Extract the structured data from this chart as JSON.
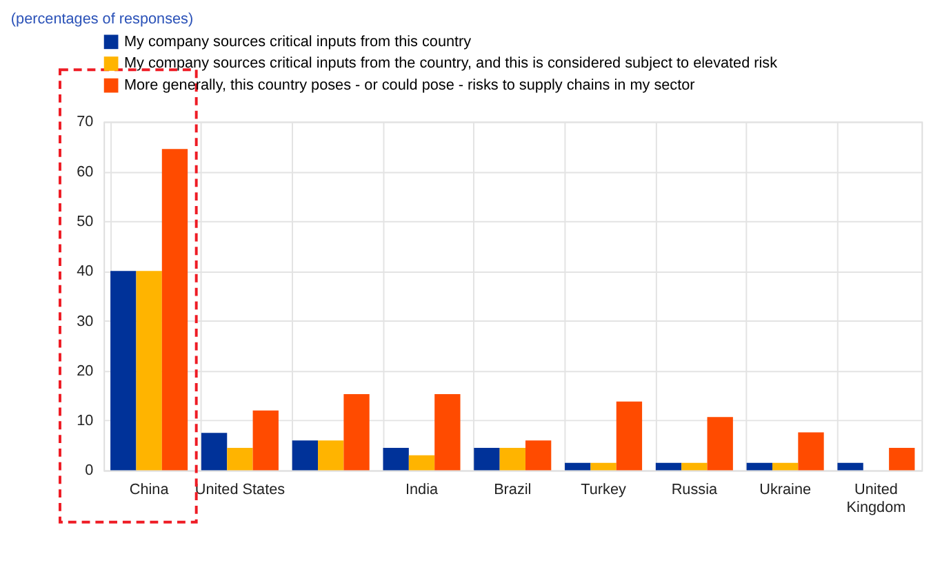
{
  "chart_data": {
    "type": "bar",
    "title": "(percentages of responses)",
    "categories": [
      "China",
      "United States",
      null,
      "India",
      "Brazil",
      "Turkey",
      "Russia",
      "Ukraine",
      "United Kingdom"
    ],
    "series": [
      {
        "name": "My company sources critical inputs from this country",
        "color": "#003299",
        "values": [
          40,
          7.5,
          6,
          4.5,
          4.5,
          1.5,
          1.5,
          1.5,
          1.5
        ]
      },
      {
        "name": "My company sources critical inputs from the country, and this is considered subject to elevated risk",
        "color": "#ffb400",
        "values": [
          40,
          4.5,
          6,
          3,
          4.5,
          1.5,
          1.5,
          1.5,
          0
        ]
      },
      {
        "name": "More generally, this country poses - or could pose - risks to supply chains in my sector",
        "color": "#ff4b00",
        "values": [
          64.5,
          12,
          15.3,
          15.3,
          6,
          13.8,
          10.7,
          7.6,
          4.5
        ]
      }
    ],
    "ylim": [
      0,
      70
    ],
    "yticks": [
      0,
      10,
      20,
      30,
      40,
      50,
      60,
      70
    ],
    "grid": true,
    "legend": "top left"
  }
}
